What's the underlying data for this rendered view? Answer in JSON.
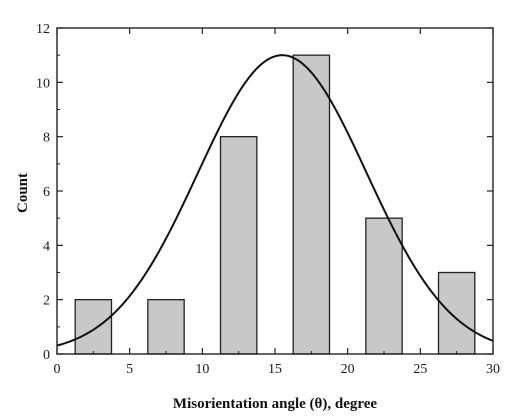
{
  "chart_data": {
    "type": "bar",
    "xlabel": "Misorientation angle (θ), degree",
    "ylabel": "Count",
    "xlim": [
      0,
      30
    ],
    "ylim": [
      0,
      12
    ],
    "x_ticks": [
      0,
      5,
      10,
      15,
      20,
      25,
      30
    ],
    "y_ticks": [
      0,
      2,
      4,
      6,
      8,
      10,
      12
    ],
    "bars": [
      {
        "x_start": 1.25,
        "x_end": 3.75,
        "value": 2
      },
      {
        "x_start": 6.25,
        "x_end": 8.75,
        "value": 2
      },
      {
        "x_start": 11.25,
        "x_end": 13.75,
        "value": 8
      },
      {
        "x_start": 16.25,
        "x_end": 18.75,
        "value": 11
      },
      {
        "x_start": 21.25,
        "x_end": 23.75,
        "value": 5
      },
      {
        "x_start": 26.25,
        "x_end": 28.75,
        "value": 3
      }
    ],
    "fit_curve": {
      "type": "gaussian",
      "peak": 11,
      "center": 15.5,
      "sigma": 5.8
    },
    "grid": false,
    "legend": "none",
    "colors": {
      "bar_fill": "#c8c8c8",
      "bar_stroke": "#222222",
      "curve": "#111111",
      "axis": "#222222"
    }
  }
}
